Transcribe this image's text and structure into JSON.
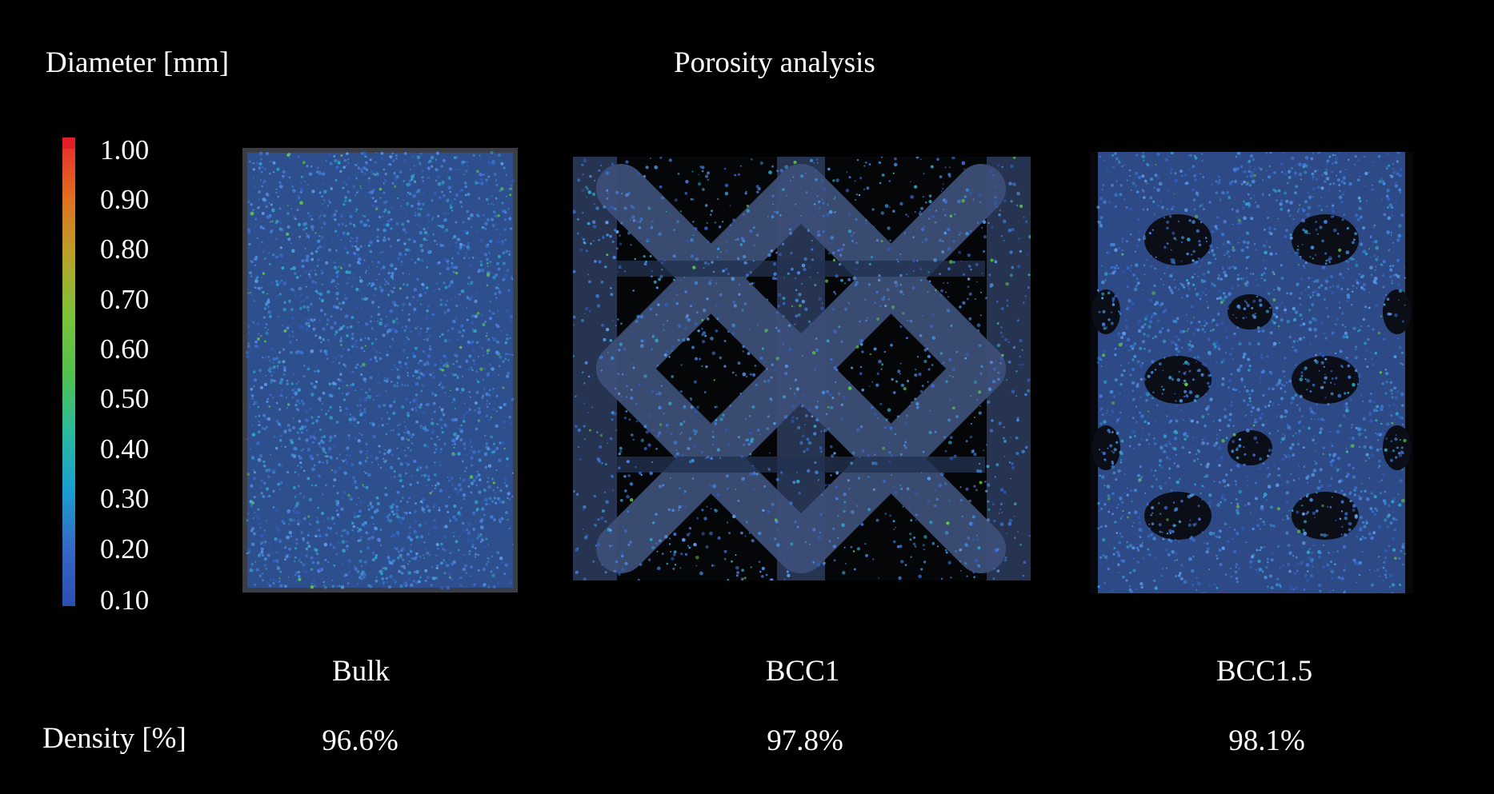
{
  "colorbar": {
    "title": "Diameter [mm]",
    "ticks": [
      "1.00",
      "0.90",
      "0.80",
      "0.70",
      "0.60",
      "0.50",
      "0.40",
      "0.30",
      "0.20",
      "0.10"
    ],
    "colors": [
      "#e8282a",
      "#e07020",
      "#b9a128",
      "#7cc23a",
      "#52c24a",
      "#2bb9a0",
      "#1b9fd0",
      "#3567c4",
      "#2b4fb0"
    ]
  },
  "title": "Porosity analysis",
  "samples": [
    {
      "label": "Bulk",
      "density": "96.6%"
    },
    {
      "label": "BCC1",
      "density": "97.8%"
    },
    {
      "label": "BCC1.5",
      "density": "98.1%"
    }
  ],
  "density_label": "Density [%]"
}
